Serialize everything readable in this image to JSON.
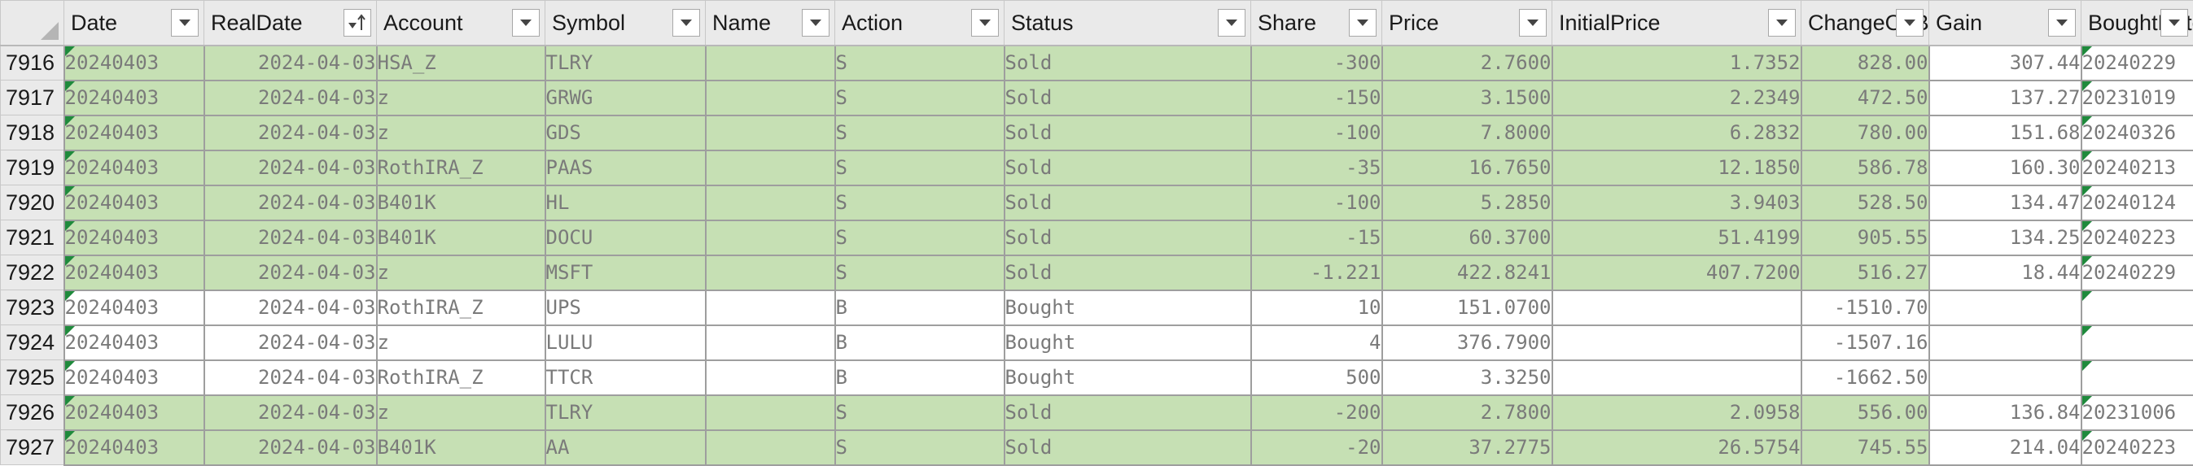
{
  "columns": [
    {
      "key": "date",
      "label": "Date",
      "sort": false
    },
    {
      "key": "realdate",
      "label": "RealDate",
      "sort": true
    },
    {
      "key": "account",
      "label": "Account",
      "sort": false
    },
    {
      "key": "symbol",
      "label": "Symbol",
      "sort": false
    },
    {
      "key": "name",
      "label": "Name",
      "sort": false
    },
    {
      "key": "action",
      "label": "Action",
      "sort": false
    },
    {
      "key": "status",
      "label": "Status",
      "sort": false
    },
    {
      "key": "share",
      "label": "Share",
      "sort": false
    },
    {
      "key": "price",
      "label": "Price",
      "sort": false
    },
    {
      "key": "initialprice",
      "label": "InitialPrice",
      "sort": false
    },
    {
      "key": "changeonbalance",
      "label": "ChangeOnBalance",
      "sort": false
    },
    {
      "key": "gain",
      "label": "Gain",
      "sort": false
    },
    {
      "key": "boughtdate",
      "label": "BoughtDate",
      "sort": false
    }
  ],
  "colors": {
    "sold_fill": "#c6e0b4",
    "header_fill": "#eaeaea",
    "grid_border": "#9e9e9e",
    "error_triangle": "#1f8a3c"
  },
  "rows": [
    {
      "num": "7916",
      "status_kind": "sold",
      "cells": {
        "date": "20240403",
        "realdate": "2024-04-03",
        "account": "HSA_Z",
        "symbol": "TLRY",
        "name": "",
        "action": "S",
        "status": "Sold",
        "share": "-300",
        "price": "2.7600",
        "initialprice": "1.7352",
        "changeonbalance": "828.00",
        "gain": "307.44",
        "boughtdate": "20240229"
      }
    },
    {
      "num": "7917",
      "status_kind": "sold",
      "cells": {
        "date": "20240403",
        "realdate": "2024-04-03",
        "account": "z",
        "symbol": "GRWG",
        "name": "",
        "action": "S",
        "status": "Sold",
        "share": "-150",
        "price": "3.1500",
        "initialprice": "2.2349",
        "changeonbalance": "472.50",
        "gain": "137.27",
        "boughtdate": "20231019"
      }
    },
    {
      "num": "7918",
      "status_kind": "sold",
      "cells": {
        "date": "20240403",
        "realdate": "2024-04-03",
        "account": "z",
        "symbol": "GDS",
        "name": "",
        "action": "S",
        "status": "Sold",
        "share": "-100",
        "price": "7.8000",
        "initialprice": "6.2832",
        "changeonbalance": "780.00",
        "gain": "151.68",
        "boughtdate": "20240326"
      }
    },
    {
      "num": "7919",
      "status_kind": "sold",
      "cells": {
        "date": "20240403",
        "realdate": "2024-04-03",
        "account": "RothIRA_Z",
        "symbol": "PAAS",
        "name": "",
        "action": "S",
        "status": "Sold",
        "share": "-35",
        "price": "16.7650",
        "initialprice": "12.1850",
        "changeonbalance": "586.78",
        "gain": "160.30",
        "boughtdate": "20240213"
      }
    },
    {
      "num": "7920",
      "status_kind": "sold",
      "cells": {
        "date": "20240403",
        "realdate": "2024-04-03",
        "account": "B401K",
        "symbol": "HL",
        "name": "",
        "action": "S",
        "status": "Sold",
        "share": "-100",
        "price": "5.2850",
        "initialprice": "3.9403",
        "changeonbalance": "528.50",
        "gain": "134.47",
        "boughtdate": "20240124"
      }
    },
    {
      "num": "7921",
      "status_kind": "sold",
      "cells": {
        "date": "20240403",
        "realdate": "2024-04-03",
        "account": "B401K",
        "symbol": "DOCU",
        "name": "",
        "action": "S",
        "status": "Sold",
        "share": "-15",
        "price": "60.3700",
        "initialprice": "51.4199",
        "changeonbalance": "905.55",
        "gain": "134.25",
        "boughtdate": "20240223"
      }
    },
    {
      "num": "7922",
      "status_kind": "sold",
      "cells": {
        "date": "20240403",
        "realdate": "2024-04-03",
        "account": "z",
        "symbol": "MSFT",
        "name": "",
        "action": "S",
        "status": "Sold",
        "share": "-1.221",
        "price": "422.8241",
        "initialprice": "407.7200",
        "changeonbalance": "516.27",
        "gain": "18.44",
        "boughtdate": "20240229"
      }
    },
    {
      "num": "7923",
      "status_kind": "bought",
      "cells": {
        "date": "20240403",
        "realdate": "2024-04-03",
        "account": "RothIRA_Z",
        "symbol": "UPS",
        "name": "",
        "action": "B",
        "status": "Bought",
        "share": "10",
        "price": "151.0700",
        "initialprice": "",
        "changeonbalance": "-1510.70",
        "gain": "",
        "boughtdate": ""
      }
    },
    {
      "num": "7924",
      "status_kind": "bought",
      "cells": {
        "date": "20240403",
        "realdate": "2024-04-03",
        "account": "z",
        "symbol": "LULU",
        "name": "",
        "action": "B",
        "status": "Bought",
        "share": "4",
        "price": "376.7900",
        "initialprice": "",
        "changeonbalance": "-1507.16",
        "gain": "",
        "boughtdate": ""
      }
    },
    {
      "num": "7925",
      "status_kind": "bought",
      "cells": {
        "date": "20240403",
        "realdate": "2024-04-03",
        "account": "RothIRA_Z",
        "symbol": "TTCR",
        "name": "",
        "action": "B",
        "status": "Bought",
        "share": "500",
        "price": "3.3250",
        "initialprice": "",
        "changeonbalance": "-1662.50",
        "gain": "",
        "boughtdate": ""
      }
    },
    {
      "num": "7926",
      "status_kind": "sold",
      "cells": {
        "date": "20240403",
        "realdate": "2024-04-03",
        "account": "z",
        "symbol": "TLRY",
        "name": "",
        "action": "S",
        "status": "Sold",
        "share": "-200",
        "price": "2.7800",
        "initialprice": "2.0958",
        "changeonbalance": "556.00",
        "gain": "136.84",
        "boughtdate": "20231006"
      }
    },
    {
      "num": "7927",
      "status_kind": "sold",
      "cells": {
        "date": "20240403",
        "realdate": "2024-04-03",
        "account": "B401K",
        "symbol": "AA",
        "name": "",
        "action": "S",
        "status": "Sold",
        "share": "-20",
        "price": "37.2775",
        "initialprice": "26.5754",
        "changeonbalance": "745.55",
        "gain": "214.04",
        "boughtdate": "20240223"
      }
    }
  ]
}
